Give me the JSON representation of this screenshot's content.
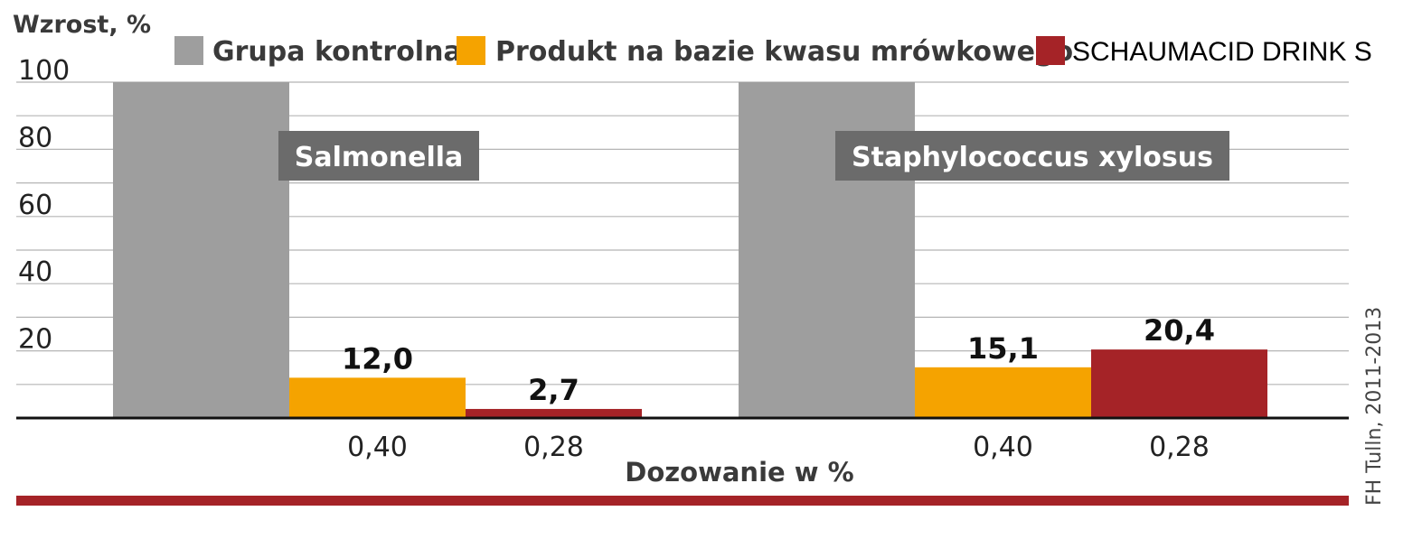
{
  "chart_data": {
    "type": "bar",
    "ylabel": "Wzrost, %",
    "xlabel": "Dozowanie w %",
    "ylim": [
      0,
      100
    ],
    "yticks": [
      "20",
      "40",
      "60",
      "80",
      "100"
    ],
    "grid": true,
    "legend_position": "top",
    "groups": [
      {
        "name": "Salmonella",
        "bars": [
          {
            "series": "Grupa kontrolna",
            "value": 100,
            "label": "",
            "dose": ""
          },
          {
            "series": "Produkt na bazie kwasu mrówkowego",
            "value": 12.0,
            "label": "12,0",
            "dose": "0,40"
          },
          {
            "series": "SCHAUMACID DRINK S",
            "value": 2.7,
            "label": "2,7",
            "dose": "0,28"
          }
        ]
      },
      {
        "name": "Staphylococcus xylosus",
        "bars": [
          {
            "series": "Grupa kontrolna",
            "value": 100,
            "label": "",
            "dose": ""
          },
          {
            "series": "Produkt na bazie kwasu mrówkowego",
            "value": 15.1,
            "label": "15,1",
            "dose": "0,40"
          },
          {
            "series": "SCHAUMACID DRINK S",
            "value": 20.4,
            "label": "20,4",
            "dose": "0,28"
          }
        ]
      }
    ],
    "series": [
      {
        "name": "Grupa kontrolna",
        "color": "#9e9e9e"
      },
      {
        "name": "Produkt na bazie kwasu mrówkowego",
        "color": "#f5a300"
      },
      {
        "name": "SCHAUMACID DRINK S",
        "color": "#a52327"
      }
    ],
    "source": "FH Tulln, 2011-2013",
    "colors": {
      "group_label_bg": "#6b6b6b",
      "bottom_rule": "#a52327",
      "grid": "#b5b5b5",
      "axis": "#111111"
    }
  }
}
